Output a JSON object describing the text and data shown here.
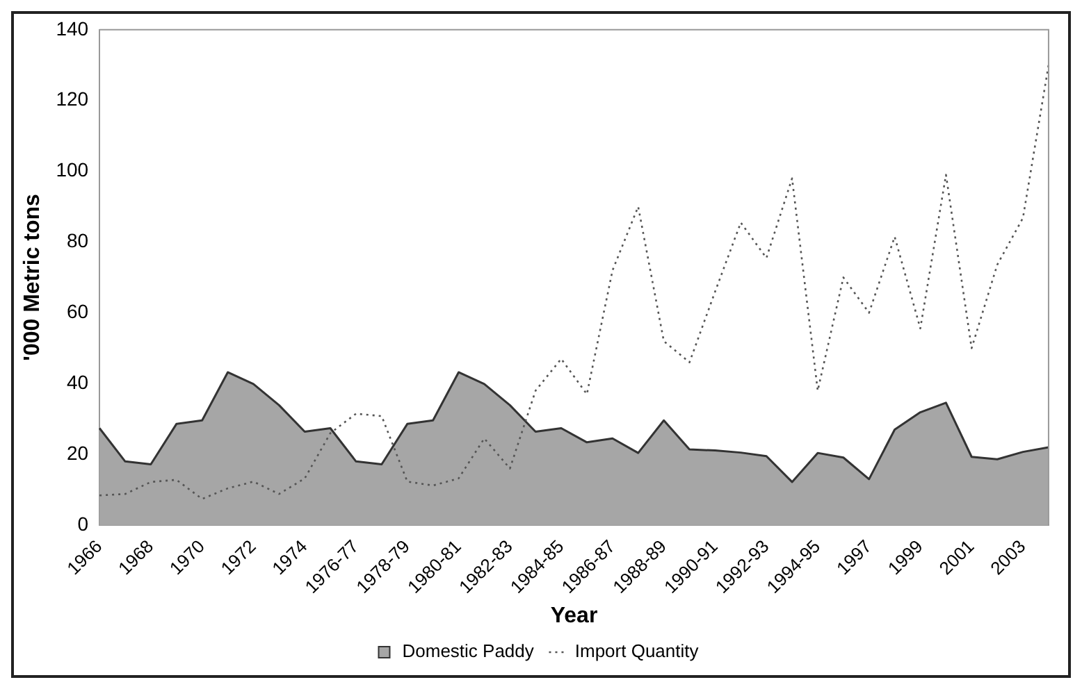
{
  "chart_data": {
    "type": "area",
    "xlabel": "Year",
    "ylabel": "'000 Metric tons",
    "categories": [
      "1966",
      null,
      "1968",
      null,
      "1970",
      null,
      "1972",
      null,
      "1974",
      null,
      "1976-77",
      null,
      "1978-79",
      null,
      "1980-81",
      null,
      "1982-83",
      null,
      "1984-85",
      null,
      "1986-87",
      null,
      "1988-89",
      null,
      "1990-91",
      null,
      "1992-93",
      null,
      "1994-95",
      null,
      "1997",
      null,
      "1999",
      null,
      "2001",
      null,
      "2003",
      null
    ],
    "series": [
      {
        "name": "Domestic Paddy",
        "type": "area",
        "color": "#a6a6a6",
        "values": [
          27.4,
          18,
          17.2,
          28.6,
          29.6,
          43.2,
          39.9,
          33.9,
          26.4,
          27.4,
          18,
          17.2,
          28.6,
          29.6,
          43.2,
          39.9,
          33.9,
          26.4,
          27.4,
          23.4,
          24.5,
          20.4,
          29.6,
          21.4,
          21.1,
          20.5,
          19.5,
          12.2,
          20.4,
          19.1,
          13,
          27,
          31.9,
          34.6,
          19.3,
          18.6,
          20.7,
          22
        ]
      },
      {
        "name": "Import Quantity",
        "type": "line",
        "color": "#555555",
        "line_style": "dotted",
        "values": [
          8.4,
          8.8,
          12.2,
          12.8,
          7.4,
          10.4,
          12.3,
          8.8,
          13.2,
          26,
          31.5,
          30.8,
          12.3,
          11.2,
          13.2,
          24.5,
          16,
          38,
          47,
          37,
          72,
          90,
          52,
          46,
          66,
          85.5,
          75.5,
          98,
          38,
          70,
          60,
          81.5,
          55.6,
          99,
          50,
          73.6,
          86.8,
          130
        ]
      }
    ],
    "ylim": [
      0,
      140
    ],
    "yticks": [
      0,
      20,
      40,
      60,
      80,
      100,
      120,
      140
    ],
    "grid": false,
    "legend": "bottom",
    "marker": "none"
  }
}
